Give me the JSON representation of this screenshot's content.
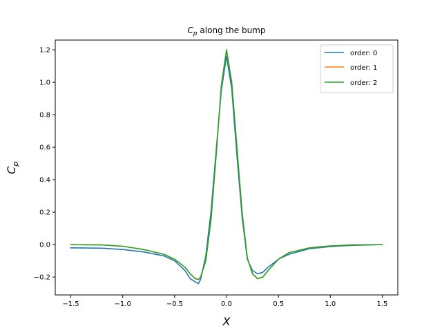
{
  "chart_data": {
    "type": "line",
    "title_main": "C",
    "title_sub": "p",
    "title_rest": " along the bump",
    "xlabel": "X",
    "ylabel_main": "C",
    "ylabel_sub": "p",
    "xlim": [
      -1.65,
      1.65
    ],
    "ylim": [
      -0.31,
      1.26
    ],
    "xticks": [
      -1.5,
      -1.0,
      -0.5,
      0.0,
      0.5,
      1.0,
      1.5
    ],
    "xtick_labels": [
      "−1.5",
      "−1.0",
      "−0.5",
      "0.0",
      "0.5",
      "1.0",
      "1.5"
    ],
    "yticks": [
      -0.2,
      0.0,
      0.2,
      0.4,
      0.6,
      0.8,
      1.0,
      1.2
    ],
    "ytick_labels": [
      "−0.2",
      "0.0",
      "0.2",
      "0.4",
      "0.6",
      "0.8",
      "1.0",
      "1.2"
    ],
    "grid": false,
    "legend_position": "top-right",
    "series": [
      {
        "name": "order: 0",
        "color": "#1f77b4",
        "x": [
          -1.5,
          -1.2,
          -1.0,
          -0.8,
          -0.6,
          -0.5,
          -0.45,
          -0.4,
          -0.35,
          -0.3,
          -0.27,
          -0.25,
          -0.2,
          -0.15,
          -0.1,
          -0.05,
          0.0,
          0.05,
          0.1,
          0.15,
          0.2,
          0.25,
          0.3,
          0.35,
          0.4,
          0.5,
          0.6,
          0.8,
          1.0,
          1.2,
          1.5
        ],
        "y": [
          -0.02,
          -0.022,
          -0.03,
          -0.045,
          -0.07,
          -0.1,
          -0.13,
          -0.16,
          -0.21,
          -0.23,
          -0.24,
          -0.215,
          -0.07,
          0.2,
          0.58,
          0.95,
          1.16,
          0.96,
          0.55,
          0.17,
          -0.09,
          -0.16,
          -0.18,
          -0.17,
          -0.14,
          -0.09,
          -0.06,
          -0.025,
          -0.012,
          -0.005,
          0.0
        ]
      },
      {
        "name": "order: 1",
        "color": "#ff7f0e",
        "x": [
          -1.5,
          -1.2,
          -1.0,
          -0.8,
          -0.6,
          -0.5,
          -0.4,
          -0.35,
          -0.3,
          -0.27,
          -0.25,
          -0.2,
          -0.15,
          -0.1,
          -0.05,
          0.0,
          0.05,
          0.1,
          0.15,
          0.2,
          0.25,
          0.3,
          0.35,
          0.4,
          0.5,
          0.6,
          0.8,
          1.0,
          1.2,
          1.5
        ],
        "y": [
          0.0,
          -0.002,
          -0.01,
          -0.03,
          -0.06,
          -0.09,
          -0.14,
          -0.18,
          -0.21,
          -0.215,
          -0.2,
          -0.1,
          0.15,
          0.55,
          0.98,
          1.2,
          1.0,
          0.6,
          0.2,
          -0.08,
          -0.18,
          -0.21,
          -0.2,
          -0.16,
          -0.09,
          -0.05,
          -0.02,
          -0.008,
          -0.002,
          0.0
        ]
      },
      {
        "name": "order: 2",
        "color": "#2ca02c",
        "x": [
          -1.5,
          -1.2,
          -1.0,
          -0.8,
          -0.6,
          -0.5,
          -0.4,
          -0.35,
          -0.3,
          -0.27,
          -0.25,
          -0.2,
          -0.15,
          -0.1,
          -0.05,
          0.0,
          0.05,
          0.1,
          0.15,
          0.2,
          0.25,
          0.3,
          0.35,
          0.4,
          0.5,
          0.6,
          0.8,
          1.0,
          1.2,
          1.5
        ],
        "y": [
          0.0,
          -0.002,
          -0.01,
          -0.03,
          -0.06,
          -0.09,
          -0.14,
          -0.18,
          -0.21,
          -0.215,
          -0.2,
          -0.1,
          0.15,
          0.55,
          0.98,
          1.2,
          1.0,
          0.6,
          0.2,
          -0.08,
          -0.18,
          -0.21,
          -0.2,
          -0.16,
          -0.09,
          -0.05,
          -0.02,
          -0.008,
          -0.002,
          0.0
        ]
      }
    ]
  }
}
